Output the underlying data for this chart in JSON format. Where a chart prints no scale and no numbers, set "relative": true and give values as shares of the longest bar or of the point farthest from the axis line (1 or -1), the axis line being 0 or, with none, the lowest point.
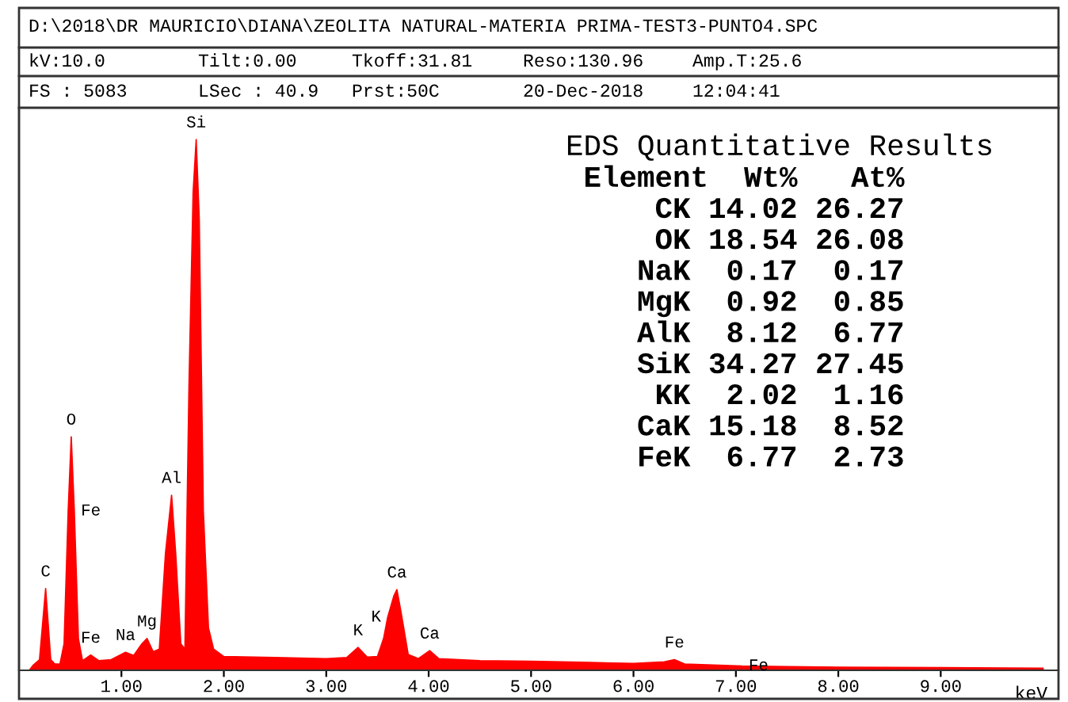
{
  "chart_data": {
    "type": "area",
    "relative": true,
    "title": "EDS Quantitative Results",
    "subtitle": "D:\\2018\\DR MAURICIO\\DIANA\\ZEOLITA NATURAL-MATERIA PRIMA-TEST3-PUNTO4.SPC",
    "xlabel": "keV",
    "xlim": [
      0,
      10.15
    ],
    "xticks": [
      {
        "value": 1,
        "label": "1.00"
      },
      {
        "value": 2,
        "label": "2.00"
      },
      {
        "value": 3,
        "label": "3.00"
      },
      {
        "value": 4,
        "label": "4.00"
      },
      {
        "value": 5,
        "label": "5.00"
      },
      {
        "value": 6,
        "label": "6.00"
      },
      {
        "value": 7,
        "label": "7.00"
      },
      {
        "value": 8,
        "label": "8.00"
      },
      {
        "value": 9,
        "label": "9.00"
      }
    ],
    "grid": false,
    "legend": false,
    "series": [
      {
        "color": "#ff0000",
        "x": [
          0.1,
          0.14,
          0.2,
          0.26,
          0.31,
          0.35,
          0.4,
          0.44,
          0.48,
          0.51,
          0.54,
          0.58,
          0.62,
          0.7,
          0.78,
          0.9,
          1.04,
          1.12,
          1.2,
          1.25,
          1.31,
          1.37,
          1.43,
          1.49,
          1.53,
          1.58,
          1.62,
          1.66,
          1.7,
          1.73,
          1.76,
          1.8,
          1.85,
          1.9,
          2.0,
          2.5,
          3.0,
          3.2,
          3.31,
          3.4,
          3.5,
          3.56,
          3.6,
          3.66,
          3.69,
          3.73,
          3.8,
          3.9,
          4.01,
          4.1,
          4.5,
          5.0,
          5.5,
          6.0,
          6.3,
          6.4,
          6.5,
          7.06,
          7.5,
          8.0,
          9.0,
          10.0
        ],
        "values": [
          0.0,
          0.01,
          0.02,
          0.154,
          0.02,
          0.012,
          0.012,
          0.05,
          0.3,
          0.44,
          0.3,
          0.06,
          0.018,
          0.029,
          0.018,
          0.02,
          0.034,
          0.028,
          0.05,
          0.06,
          0.035,
          0.04,
          0.22,
          0.33,
          0.22,
          0.05,
          0.04,
          0.54,
          0.9,
          1.0,
          0.85,
          0.3,
          0.08,
          0.04,
          0.026,
          0.024,
          0.022,
          0.024,
          0.043,
          0.025,
          0.026,
          0.06,
          0.1,
          0.14,
          0.152,
          0.11,
          0.03,
          0.022,
          0.037,
          0.022,
          0.018,
          0.017,
          0.015,
          0.013,
          0.016,
          0.02,
          0.012,
          0.008,
          0.007,
          0.006,
          0.005,
          0.004
        ]
      }
    ],
    "annotations": [
      "kV:10.0",
      "Tilt:0.00",
      "Tkoff:31.81",
      "Reso:130.96",
      "Amp.T:25.6",
      "FS : 5083",
      "LSec : 40.9",
      "Prst:50C",
      "20-Dec-2018",
      "12:04:41",
      " Element  Wt%   At%",
      "     CK 14.02 26.27",
      "     OK 18.54 26.08",
      "    NaK  0.17  0.17",
      "    MgK  0.92  0.85",
      "    AlK  8.12  6.77",
      "    SiK 34.27 27.45",
      "     KK  2.02  1.16",
      "    CaK 15.18  8.52",
      "    FeK  6.77  2.73",
      {
        "text": "C",
        "x": 0.26,
        "y": 0.154
      },
      {
        "text": "O",
        "x": 0.51,
        "y": 0.44
      },
      {
        "text": "Fe",
        "x": 0.54,
        "y": 0.3
      },
      {
        "text": "Fe",
        "x": 0.7,
        "y": 0.029
      },
      {
        "text": "Na",
        "x": 1.04,
        "y": 0.034
      },
      {
        "text": "Mg",
        "x": 1.25,
        "y": 0.06
      },
      {
        "text": "Al",
        "x": 1.49,
        "y": 0.33
      },
      {
        "text": "Si",
        "x": 1.73,
        "y": 1.0
      },
      {
        "text": "K",
        "x": 3.31,
        "y": 0.043
      },
      {
        "text": "K",
        "x": 3.6,
        "y": 0.1
      },
      {
        "text": "Ca",
        "x": 3.69,
        "y": 0.152
      },
      {
        "text": "Ca",
        "x": 4.01,
        "y": 0.037
      },
      {
        "text": "Fe",
        "x": 6.4,
        "y": 0.02
      },
      {
        "text": "Fe",
        "x": 7.06,
        "y": 0.008
      }
    ]
  }
}
